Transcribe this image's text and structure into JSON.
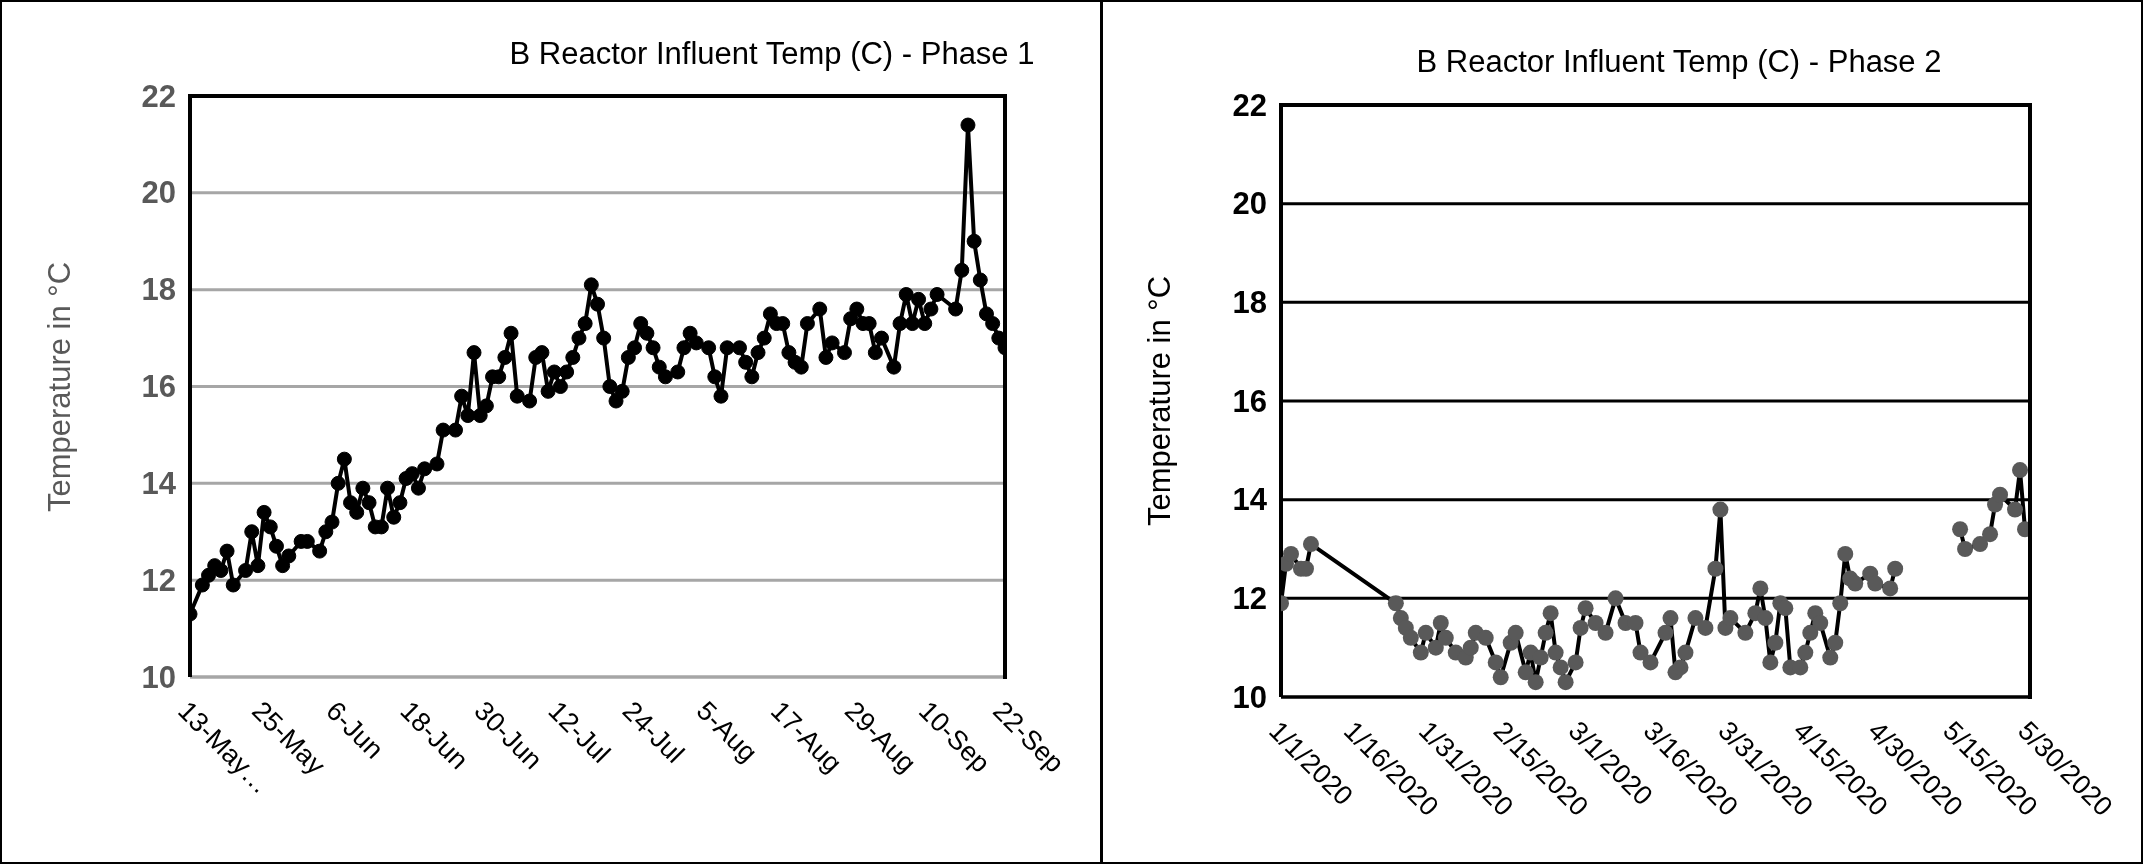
{
  "chart_data": [
    {
      "type": "line",
      "title": "B Reactor Influent Temp (C) - Phase 1",
      "ylabel": "Temperature in °C",
      "marker": "circle",
      "grid": "y",
      "x": [
        "--05-13",
        "--05-15",
        "--05-16",
        "--05-17",
        "--05-18",
        "--05-19",
        "--05-20",
        "--05-22",
        "--05-23",
        "--05-24",
        "--05-25",
        "--05-26",
        "--05-27",
        "--05-28",
        "--05-29",
        "--05-31",
        "--06-01",
        "--06-03",
        "--06-04",
        "--06-05",
        "--06-06",
        "--06-07",
        "--06-08",
        "--06-09",
        "--06-10",
        "--06-11",
        "--06-12",
        "--06-13",
        "--06-14",
        "--06-15",
        "--06-16",
        "--06-17",
        "--06-18",
        "--06-19",
        "--06-20",
        "--06-22",
        "--06-23",
        "--06-25",
        "--06-26",
        "--06-27",
        "--06-28",
        "--06-29",
        "--06-30",
        "--07-01",
        "--07-02",
        "--07-03",
        "--07-04",
        "--07-05",
        "--07-07",
        "--07-08",
        "--07-09",
        "--07-10",
        "--07-11",
        "--07-12",
        "--07-13",
        "--07-14",
        "--07-15",
        "--07-16",
        "--07-17",
        "--07-18",
        "--07-19",
        "--07-20",
        "--07-21",
        "--07-22",
        "--07-23",
        "--07-24",
        "--07-25",
        "--07-26",
        "--07-27",
        "--07-28",
        "--07-29",
        "--07-31",
        "--08-01",
        "--08-02",
        "--08-03",
        "--08-05",
        "--08-06",
        "--08-07",
        "--08-08",
        "--08-10",
        "--08-11",
        "--08-12",
        "--08-13",
        "--08-14",
        "--08-15",
        "--08-16",
        "--08-17",
        "--08-18",
        "--08-19",
        "--08-20",
        "--08-21",
        "--08-23",
        "--08-24",
        "--08-25",
        "--08-27",
        "--08-28",
        "--08-29",
        "--08-30",
        "--08-31",
        "--09-01",
        "--09-02",
        "--09-04",
        "--09-05",
        "--09-06",
        "--09-07",
        "--09-08",
        "--09-09",
        "--09-10",
        "--09-11",
        "--09-14",
        "--09-15",
        "--09-16",
        "--09-17",
        "--09-18",
        "--09-19",
        "--09-20",
        "--09-21",
        "--09-22"
      ],
      "series": [
        {
          "color": "#000000",
          "values": [
            11.3,
            11.9,
            12.1,
            12.3,
            12.2,
            12.6,
            11.9,
            12.2,
            13.0,
            12.3,
            13.4,
            13.1,
            12.7,
            12.3,
            12.5,
            12.8,
            12.8,
            12.6,
            13.0,
            13.2,
            14.0,
            14.5,
            13.6,
            13.4,
            13.9,
            13.6,
            13.1,
            13.1,
            13.9,
            13.3,
            13.6,
            14.1,
            14.2,
            13.9,
            14.3,
            14.4,
            15.1,
            15.1,
            15.8,
            15.4,
            16.7,
            15.4,
            15.6,
            16.2,
            16.2,
            16.6,
            17.1,
            15.8,
            15.7,
            16.6,
            16.7,
            15.9,
            16.3,
            16.0,
            16.3,
            16.6,
            17.0,
            17.3,
            18.1,
            17.7,
            17.0,
            16.0,
            15.7,
            15.9,
            16.6,
            16.8,
            17.3,
            17.1,
            16.8,
            16.4,
            16.2,
            16.3,
            16.8,
            17.1,
            16.9,
            16.8,
            16.2,
            15.8,
            16.8,
            16.8,
            16.5,
            16.2,
            16.7,
            17.0,
            17.5,
            17.3,
            17.3,
            16.7,
            16.5,
            16.4,
            17.3,
            17.6,
            16.6,
            16.9,
            16.7,
            17.4,
            17.6,
            17.3,
            17.3,
            16.7,
            17.0,
            16.4,
            17.3,
            17.9,
            17.3,
            17.8,
            17.3,
            17.6,
            17.9,
            17.6,
            18.4,
            21.4,
            19.0,
            18.2,
            17.5,
            17.3,
            17.0,
            16.8
          ]
        }
      ],
      "xlim": [
        "--05-13",
        "--09-22"
      ],
      "xticks": [
        {
          "value": "--05-13",
          "label": "13-May…"
        },
        {
          "value": "--05-25",
          "label": "25-May"
        },
        {
          "value": "--06-06",
          "label": "6-Jun"
        },
        {
          "value": "--06-18",
          "label": "18-Jun"
        },
        {
          "value": "--06-30",
          "label": "30-Jun"
        },
        {
          "value": "--07-12",
          "label": "12-Jul"
        },
        {
          "value": "--07-24",
          "label": "24-Jul"
        },
        {
          "value": "--08-05",
          "label": "5-Aug"
        },
        {
          "value": "--08-17",
          "label": "17-Aug"
        },
        {
          "value": "--08-29",
          "label": "29-Aug"
        },
        {
          "value": "--09-10",
          "label": "10-Sep"
        },
        {
          "value": "--09-22",
          "label": "22-Sep"
        }
      ],
      "ylim": [
        10,
        22
      ],
      "yticks": [
        10,
        12,
        14,
        16,
        18,
        20,
        22
      ]
    },
    {
      "type": "line",
      "title": "B Reactor Influent Temp (C) - Phase 2",
      "ylabel": "Temperature in °C",
      "marker": "circle",
      "grid": "y",
      "x": [
        "2020-01-01",
        "2020-01-02",
        "2020-01-03",
        "2020-01-05",
        "2020-01-06",
        "2020-01-07",
        "2020-01-24",
        "2020-01-25",
        "2020-01-26",
        "2020-01-27",
        "2020-01-29",
        "2020-01-30",
        "2020-02-01",
        "2020-02-02",
        "2020-02-03",
        "2020-02-05",
        "2020-02-07",
        "2020-02-08",
        "2020-02-09",
        "2020-02-11",
        "2020-02-13",
        "2020-02-14",
        "2020-02-16",
        "2020-02-17",
        "2020-02-19",
        "2020-02-20",
        "2020-02-21",
        "2020-02-22",
        "2020-02-23",
        "2020-02-24",
        "2020-02-25",
        "2020-02-26",
        "2020-02-27",
        "2020-02-29",
        "2020-03-01",
        "2020-03-02",
        "2020-03-04",
        "2020-03-06",
        "2020-03-08",
        "2020-03-10",
        "2020-03-12",
        "2020-03-13",
        "2020-03-15",
        "2020-03-18",
        "2020-03-19",
        "2020-03-20",
        "2020-03-21",
        "2020-03-22",
        "2020-03-24",
        "2020-03-26",
        "2020-03-28",
        "2020-03-29",
        "2020-03-30",
        "2020-03-31",
        "2020-04-03",
        "2020-04-05",
        "2020-04-06",
        "2020-04-07",
        "2020-04-08",
        "2020-04-09",
        "2020-04-10",
        "2020-04-11",
        "2020-04-12",
        "2020-04-14",
        "2020-04-15",
        "2020-04-16",
        "2020-04-17",
        "2020-04-18",
        "2020-04-20",
        "2020-04-21",
        "2020-04-22",
        "2020-04-23",
        "2020-04-24",
        "2020-04-25",
        "2020-04-28",
        "2020-04-29",
        "2020-05-02",
        "2020-05-03",
        "2020-05-09",
        "2020-05-16",
        "2020-05-17",
        "2020-05-20",
        "2020-05-22",
        "2020-05-23",
        "2020-05-24",
        "2020-05-27",
        "2020-05-28",
        "2020-05-29"
      ],
      "series": [
        {
          "type": "line",
          "marker": "none",
          "color": "#000000",
          "values": [
            11.9,
            12.7,
            12.9,
            12.6,
            12.6,
            13.1,
            11.9,
            11.6,
            11.4,
            11.2,
            10.9,
            11.3,
            11.0,
            11.5,
            11.2,
            10.9,
            10.8,
            11.0,
            11.3,
            11.2,
            10.7,
            10.4,
            11.1,
            11.3,
            10.5,
            10.9,
            10.3,
            10.8,
            11.3,
            11.7,
            10.9,
            10.6,
            10.3,
            10.7,
            11.4,
            11.8,
            11.5,
            11.3,
            12.0,
            11.5,
            11.5,
            10.9,
            10.7,
            11.3,
            11.6,
            10.5,
            10.6,
            10.9,
            11.6,
            11.4,
            12.6,
            13.8,
            11.4,
            11.6,
            11.3,
            11.7,
            12.2,
            11.6,
            10.7,
            11.1,
            11.9,
            11.8,
            10.6,
            10.6,
            10.9,
            11.3,
            11.7,
            11.5,
            10.8,
            11.1,
            11.9,
            12.9,
            12.4,
            12.3,
            12.5,
            12.3,
            12.2,
            12.6,
            null,
            13.4,
            13.0,
            13.1,
            13.3,
            13.9,
            14.1,
            13.8,
            14.6,
            13.4
          ]
        },
        {
          "type": "scatter",
          "color": "#595959",
          "values": [
            11.9,
            12.7,
            12.9,
            12.6,
            12.6,
            13.1,
            11.9,
            11.6,
            11.4,
            11.2,
            10.9,
            11.3,
            11.0,
            11.5,
            11.2,
            10.9,
            10.8,
            11.0,
            11.3,
            11.2,
            10.7,
            10.4,
            11.1,
            11.3,
            10.5,
            10.9,
            10.3,
            10.8,
            11.3,
            11.7,
            10.9,
            10.6,
            10.3,
            10.7,
            11.4,
            11.8,
            11.5,
            11.3,
            12.0,
            11.5,
            11.5,
            10.9,
            10.7,
            11.3,
            11.6,
            10.5,
            10.6,
            10.9,
            11.6,
            11.4,
            12.6,
            13.8,
            11.4,
            11.6,
            11.3,
            11.7,
            12.2,
            11.6,
            10.7,
            11.1,
            11.9,
            11.8,
            10.6,
            10.6,
            10.9,
            11.3,
            11.7,
            11.5,
            10.8,
            11.1,
            11.9,
            12.9,
            12.4,
            12.3,
            12.5,
            12.3,
            12.2,
            12.6,
            null,
            13.4,
            13.0,
            13.1,
            13.3,
            13.9,
            14.1,
            13.8,
            14.6,
            13.4
          ]
        }
      ],
      "xlim": [
        "2020-01-01",
        "2020-05-30"
      ],
      "xticks": [
        {
          "value": "2020-01-01",
          "label": "1/1/2020"
        },
        {
          "value": "2020-01-16",
          "label": "1/16/2020"
        },
        {
          "value": "2020-01-31",
          "label": "1/31/2020"
        },
        {
          "value": "2020-02-15",
          "label": "2/15/2020"
        },
        {
          "value": "2020-03-01",
          "label": "3/1/2020"
        },
        {
          "value": "2020-03-16",
          "label": "3/16/2020"
        },
        {
          "value": "2020-03-31",
          "label": "3/31/2020"
        },
        {
          "value": "2020-04-15",
          "label": "4/15/2020"
        },
        {
          "value": "2020-04-30",
          "label": "4/30/2020"
        },
        {
          "value": "2020-05-15",
          "label": "5/15/2020"
        },
        {
          "value": "2020-05-30",
          "label": "5/30/2020"
        }
      ],
      "ylim": [
        10,
        22
      ],
      "yticks": [
        10,
        12,
        14,
        16,
        18,
        20,
        22
      ]
    }
  ]
}
